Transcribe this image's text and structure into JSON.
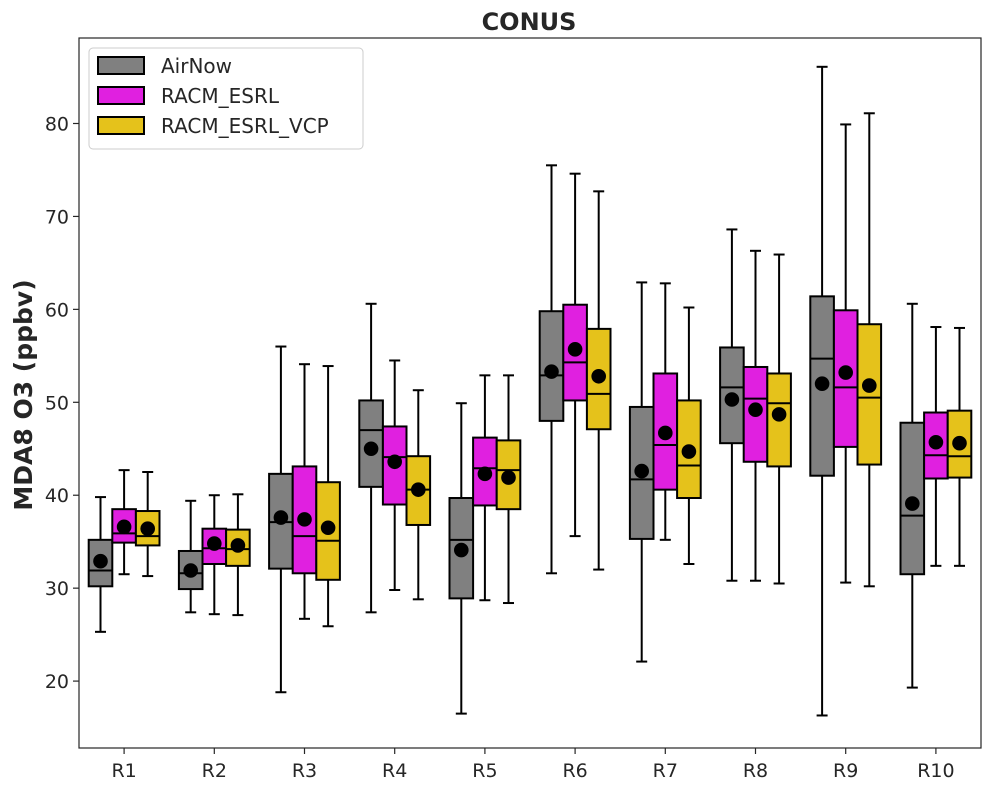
{
  "chart_data": {
    "type": "box",
    "title": "CONUS",
    "xlabel": "",
    "ylabel": "MDA8 O3 (ppbv)",
    "ylim": [
      12.8,
      89.2
    ],
    "yticks": [
      20,
      30,
      40,
      50,
      60,
      70,
      80
    ],
    "grid": false,
    "legend_position": "top-left",
    "categories": [
      "R1",
      "R2",
      "R3",
      "R4",
      "R5",
      "R6",
      "R7",
      "R8",
      "R9",
      "R10"
    ],
    "series": [
      {
        "name": "AirNow",
        "color": "#808080",
        "boxes": [
          {
            "whisker_low": 25.3,
            "q1": 30.2,
            "median": 31.9,
            "q3": 35.2,
            "whisker_high": 39.8,
            "mean": 32.9
          },
          {
            "whisker_low": 27.4,
            "q1": 29.9,
            "median": 31.6,
            "q3": 34.0,
            "whisker_high": 39.4,
            "mean": 31.9
          },
          {
            "whisker_low": 18.8,
            "q1": 32.1,
            "median": 37.1,
            "q3": 42.3,
            "whisker_high": 56.0,
            "mean": 37.6
          },
          {
            "whisker_low": 27.4,
            "q1": 40.9,
            "median": 47.0,
            "q3": 50.2,
            "whisker_high": 60.6,
            "mean": 45.0
          },
          {
            "whisker_low": 16.5,
            "q1": 28.9,
            "median": 35.2,
            "q3": 39.7,
            "whisker_high": 49.9,
            "mean": 34.1
          },
          {
            "whisker_low": 31.6,
            "q1": 48.0,
            "median": 52.9,
            "q3": 59.8,
            "whisker_high": 75.5,
            "mean": 53.3
          },
          {
            "whisker_low": 22.1,
            "q1": 35.3,
            "median": 41.7,
            "q3": 49.5,
            "whisker_high": 62.9,
            "mean": 42.6
          },
          {
            "whisker_low": 30.8,
            "q1": 45.6,
            "median": 51.6,
            "q3": 55.9,
            "whisker_high": 68.6,
            "mean": 50.3
          },
          {
            "whisker_low": 16.3,
            "q1": 42.1,
            "median": 54.7,
            "q3": 61.4,
            "whisker_high": 86.1,
            "mean": 52.0
          },
          {
            "whisker_low": 19.3,
            "q1": 31.5,
            "median": 37.8,
            "q3": 47.8,
            "whisker_high": 60.6,
            "mean": 39.1
          }
        ]
      },
      {
        "name": "RACM_ESRL",
        "color": "#e020e0",
        "boxes": [
          {
            "whisker_low": 31.5,
            "q1": 34.9,
            "median": 35.9,
            "q3": 38.5,
            "whisker_high": 42.7,
            "mean": 36.6
          },
          {
            "whisker_low": 27.2,
            "q1": 32.6,
            "median": 34.3,
            "q3": 36.4,
            "whisker_high": 40.0,
            "mean": 34.8
          },
          {
            "whisker_low": 26.7,
            "q1": 31.6,
            "median": 35.6,
            "q3": 43.1,
            "whisker_high": 54.1,
            "mean": 37.4
          },
          {
            "whisker_low": 29.8,
            "q1": 39.0,
            "median": 44.1,
            "q3": 47.4,
            "whisker_high": 54.5,
            "mean": 43.6
          },
          {
            "whisker_low": 28.7,
            "q1": 38.9,
            "median": 42.9,
            "q3": 46.2,
            "whisker_high": 52.9,
            "mean": 42.3
          },
          {
            "whisker_low": 35.6,
            "q1": 50.2,
            "median": 54.3,
            "q3": 60.5,
            "whisker_high": 74.6,
            "mean": 55.7
          },
          {
            "whisker_low": 35.2,
            "q1": 40.6,
            "median": 45.4,
            "q3": 53.1,
            "whisker_high": 62.8,
            "mean": 46.7
          },
          {
            "whisker_low": 30.8,
            "q1": 43.6,
            "median": 50.4,
            "q3": 53.8,
            "whisker_high": 66.3,
            "mean": 49.2
          },
          {
            "whisker_low": 30.6,
            "q1": 45.2,
            "median": 51.6,
            "q3": 59.9,
            "whisker_high": 79.9,
            "mean": 53.2
          },
          {
            "whisker_low": 32.4,
            "q1": 41.8,
            "median": 44.3,
            "q3": 48.9,
            "whisker_high": 58.1,
            "mean": 45.7
          }
        ]
      },
      {
        "name": "RACM_ESRL_VCP",
        "color": "#e5c21b",
        "boxes": [
          {
            "whisker_low": 31.3,
            "q1": 34.6,
            "median": 35.6,
            "q3": 38.3,
            "whisker_high": 42.5,
            "mean": 36.4
          },
          {
            "whisker_low": 27.1,
            "q1": 32.4,
            "median": 34.2,
            "q3": 36.3,
            "whisker_high": 40.1,
            "mean": 34.6
          },
          {
            "whisker_low": 25.9,
            "q1": 30.9,
            "median": 35.1,
            "q3": 41.4,
            "whisker_high": 53.9,
            "mean": 36.5
          },
          {
            "whisker_low": 28.8,
            "q1": 36.8,
            "median": 40.6,
            "q3": 44.2,
            "whisker_high": 51.3,
            "mean": 40.6
          },
          {
            "whisker_low": 28.4,
            "q1": 38.5,
            "median": 42.7,
            "q3": 45.9,
            "whisker_high": 52.9,
            "mean": 41.9
          },
          {
            "whisker_low": 32.0,
            "q1": 47.1,
            "median": 50.9,
            "q3": 57.9,
            "whisker_high": 72.7,
            "mean": 52.8
          },
          {
            "whisker_low": 32.6,
            "q1": 39.7,
            "median": 43.2,
            "q3": 50.2,
            "whisker_high": 60.2,
            "mean": 44.7
          },
          {
            "whisker_low": 30.5,
            "q1": 43.1,
            "median": 49.9,
            "q3": 53.1,
            "whisker_high": 65.9,
            "mean": 48.7
          },
          {
            "whisker_low": 30.2,
            "q1": 43.3,
            "median": 50.5,
            "q3": 58.4,
            "whisker_high": 81.1,
            "mean": 51.8
          },
          {
            "whisker_low": 32.4,
            "q1": 41.9,
            "median": 44.2,
            "q3": 49.1,
            "whisker_high": 58.0,
            "mean": 45.6
          }
        ]
      }
    ]
  }
}
